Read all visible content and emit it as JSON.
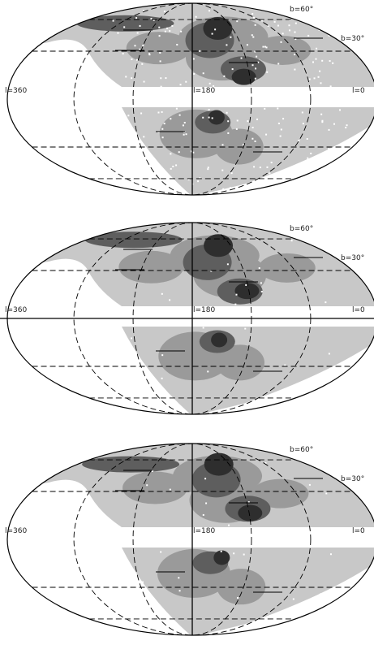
{
  "palette": {
    "background": "#ffffff",
    "light": "#c8c8c8",
    "mid": "#9a9a9a",
    "dark": "#5e5e5e",
    "darker": "#2e2e2e",
    "line": "#000000"
  },
  "panels": [
    {
      "id": "top",
      "labels": {
        "b_north": "b=60°",
        "b_mid": "b=30°",
        "l_left": "l=360",
        "l_center": "l=180",
        "l_right": "l=0"
      },
      "points_overlay": true,
      "galactic_equator_line": false
    },
    {
      "id": "middle",
      "labels": {
        "b_north": "b=60°",
        "b_mid": "b=30°",
        "l_left": "l=360",
        "l_center": "l=180",
        "l_right": "l=0"
      },
      "points_overlay": false,
      "galactic_equator_line": true
    },
    {
      "id": "bottom",
      "labels": {
        "b_north": "b=60°",
        "b_mid": "b=30°",
        "l_left": "l=360",
        "l_center": "l=180",
        "l_right": "l=0"
      },
      "points_overlay": false,
      "galactic_equator_line": false
    }
  ]
}
